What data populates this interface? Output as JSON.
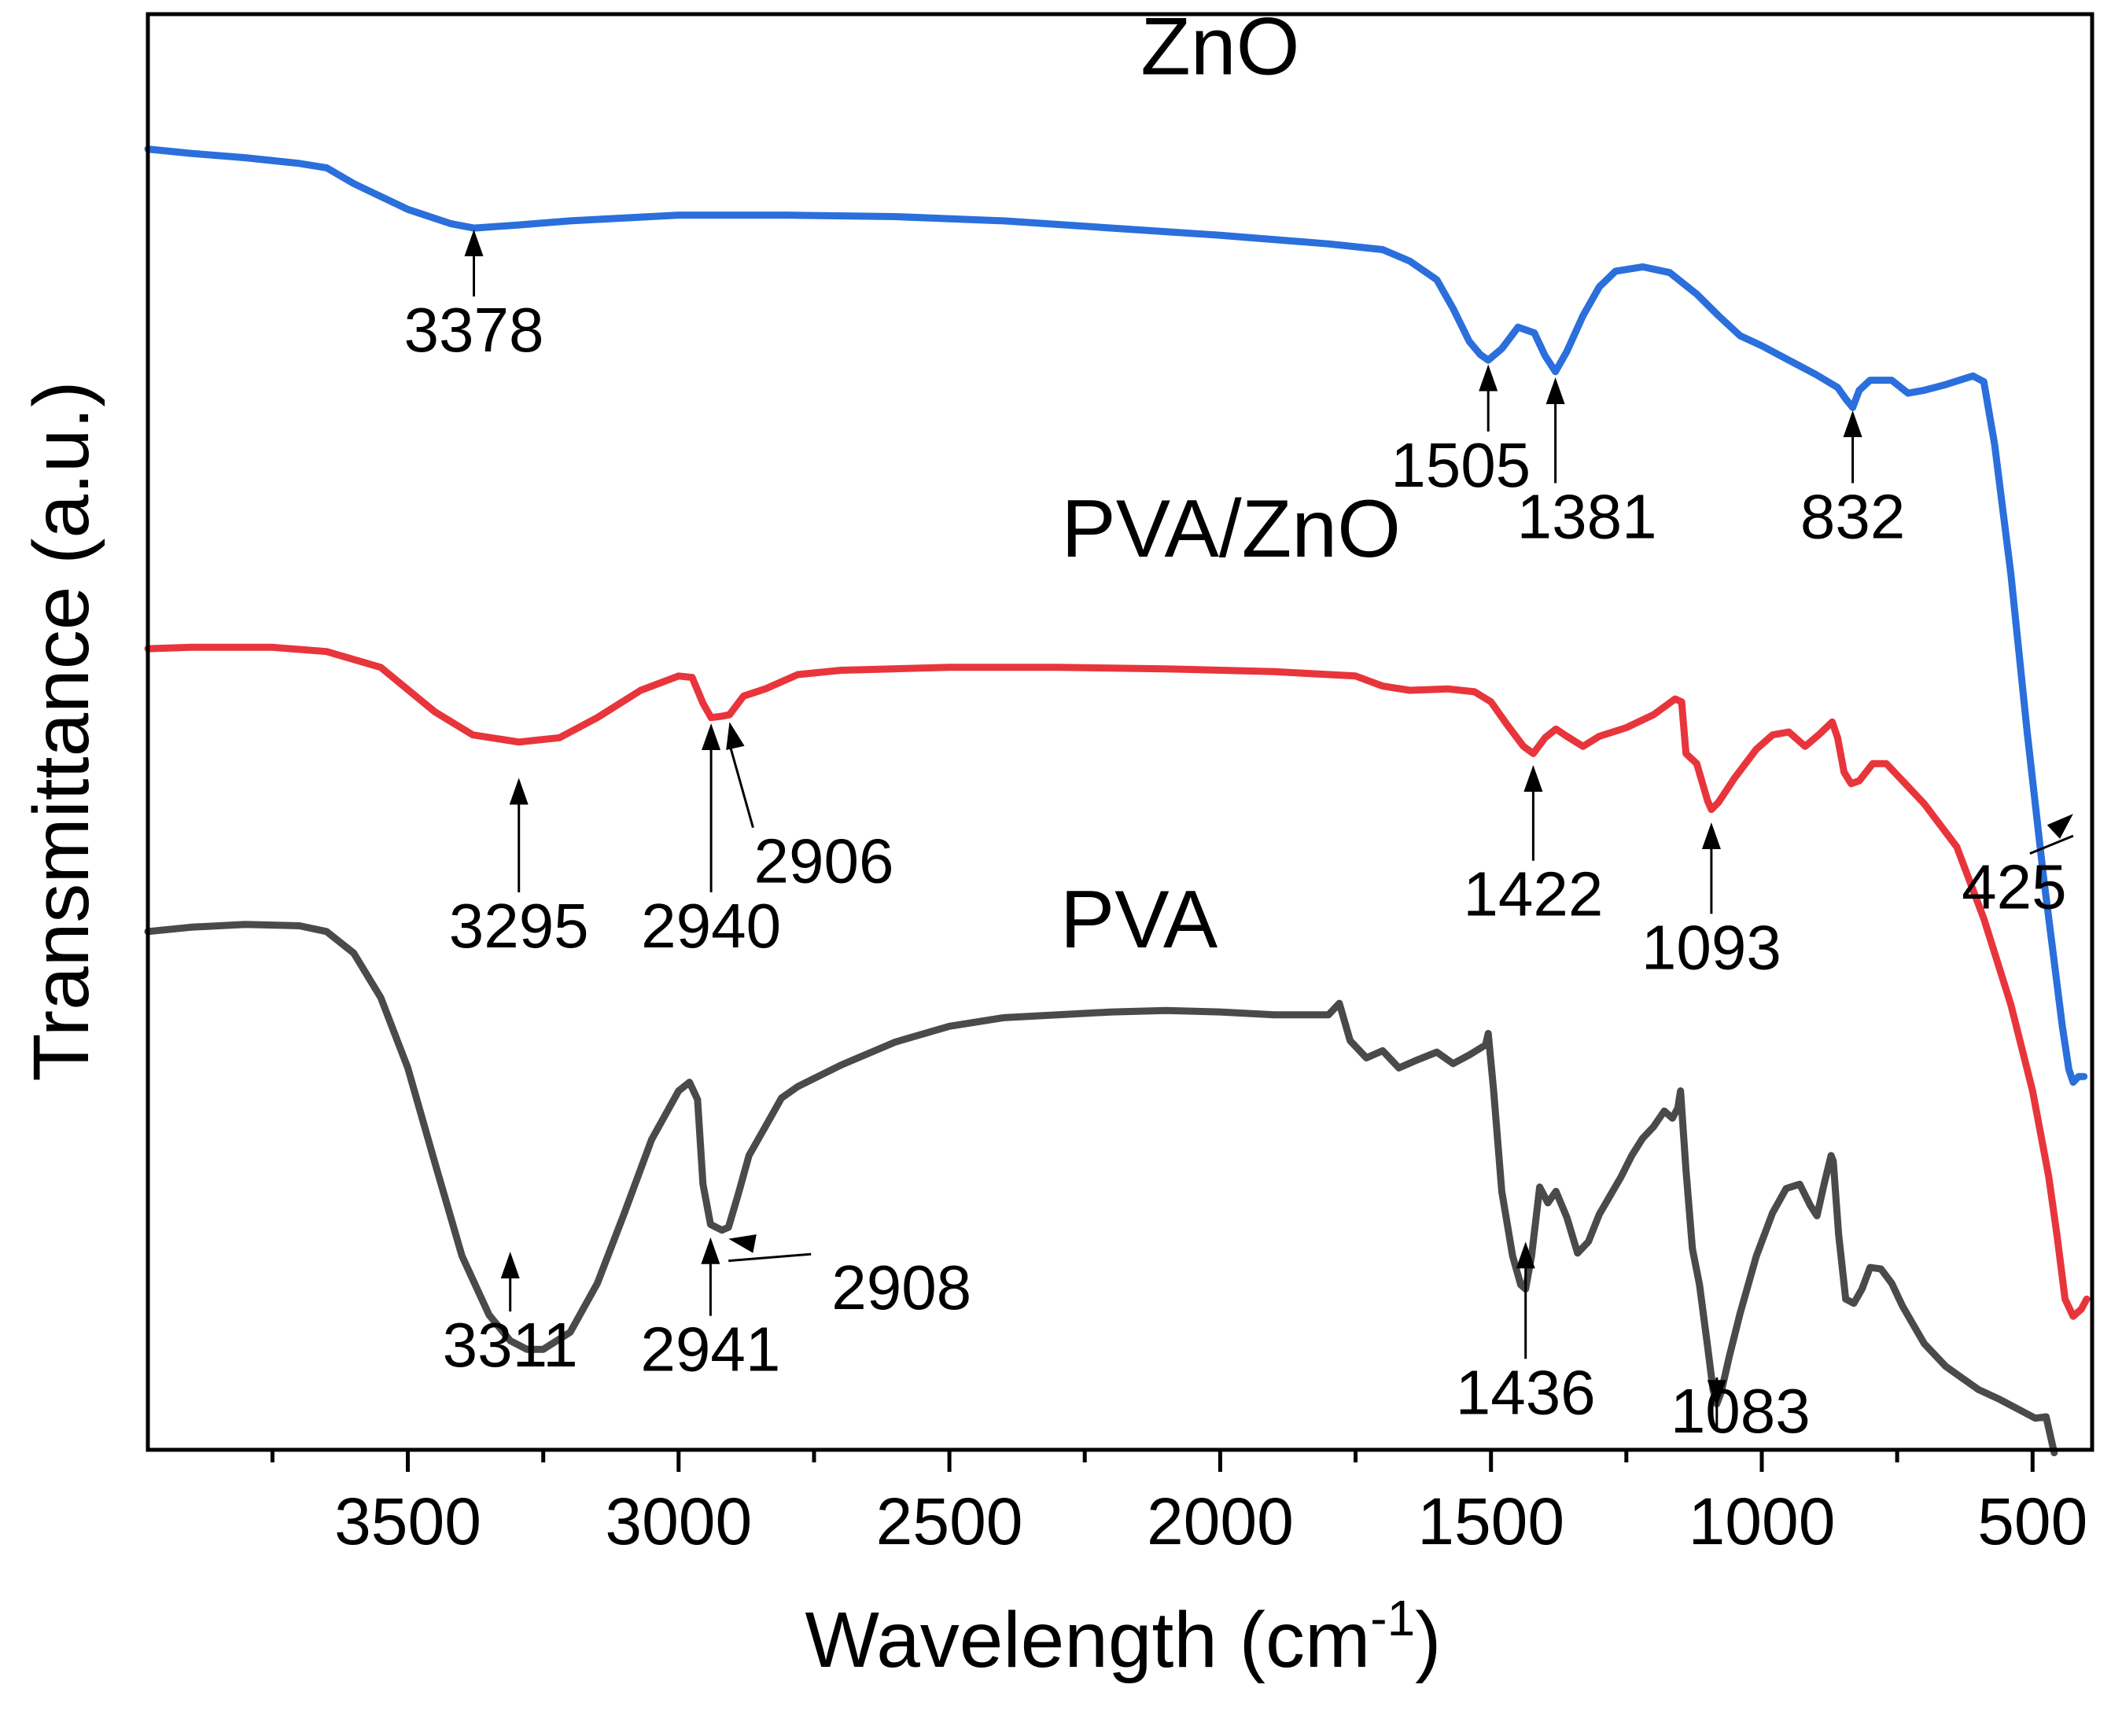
{
  "chart_data": {
    "type": "line",
    "title": "",
    "xlabel": "Wavelength (cm",
    "xlabel_superscript": "-1",
    "xlabel_suffix": ")",
    "ylabel": "Transmittance (a.u.)",
    "xlim": [
      3980,
      390
    ],
    "ylim": [
      0,
      100
    ],
    "x_ticks": [
      {
        "value": 3500,
        "label": "3500"
      },
      {
        "value": 3000,
        "label": "3000"
      },
      {
        "value": 2500,
        "label": "2500"
      },
      {
        "value": 2000,
        "label": "2000"
      },
      {
        "value": 1500,
        "label": "1500"
      },
      {
        "value": 1000,
        "label": "1000"
      },
      {
        "value": 500,
        "label": "500"
      }
    ],
    "minor_ticks": [
      3750,
      3250,
      2750,
      2250,
      1750,
      1250,
      750
    ],
    "series": [
      {
        "name": "ZnO",
        "color": "#2a6fdb",
        "label_at": [
          2000,
          95.8
        ],
        "points": [
          [
            3980,
            90.6
          ],
          [
            3900,
            90.3
          ],
          [
            3800,
            90.0
          ],
          [
            3700,
            89.6
          ],
          [
            3650,
            89.3
          ],
          [
            3600,
            88.2
          ],
          [
            3500,
            86.4
          ],
          [
            3420,
            85.4
          ],
          [
            3378,
            85.1
          ],
          [
            3300,
            85.3
          ],
          [
            3200,
            85.6
          ],
          [
            3000,
            86.0
          ],
          [
            2800,
            86.0
          ],
          [
            2600,
            85.9
          ],
          [
            2400,
            85.6
          ],
          [
            2200,
            85.1
          ],
          [
            2000,
            84.6
          ],
          [
            1800,
            84.0
          ],
          [
            1700,
            83.6
          ],
          [
            1650,
            82.8
          ],
          [
            1600,
            81.5
          ],
          [
            1570,
            79.5
          ],
          [
            1540,
            77.2
          ],
          [
            1520,
            76.3
          ],
          [
            1505,
            75.9
          ],
          [
            1480,
            76.7
          ],
          [
            1450,
            78.2
          ],
          [
            1420,
            77.8
          ],
          [
            1400,
            76.2
          ],
          [
            1381,
            75.1
          ],
          [
            1360,
            76.5
          ],
          [
            1330,
            79.0
          ],
          [
            1300,
            81.0
          ],
          [
            1270,
            82.1
          ],
          [
            1220,
            82.4
          ],
          [
            1170,
            82.0
          ],
          [
            1120,
            80.5
          ],
          [
            1080,
            79.0
          ],
          [
            1040,
            77.6
          ],
          [
            1000,
            76.9
          ],
          [
            950,
            75.9
          ],
          [
            900,
            74.9
          ],
          [
            860,
            74.0
          ],
          [
            845,
            73.2
          ],
          [
            832,
            72.6
          ],
          [
            820,
            73.8
          ],
          [
            800,
            74.5
          ],
          [
            760,
            74.5
          ],
          [
            730,
            73.6
          ],
          [
            700,
            73.8
          ],
          [
            660,
            74.2
          ],
          [
            610,
            74.8
          ],
          [
            590,
            74.4
          ],
          [
            570,
            70.0
          ],
          [
            540,
            61.0
          ],
          [
            510,
            50.0
          ],
          [
            480,
            40.0
          ],
          [
            460,
            34.0
          ],
          [
            445,
            29.5
          ],
          [
            433,
            26.5
          ],
          [
            425,
            25.6
          ],
          [
            415,
            26.0
          ],
          [
            405,
            26.0
          ]
        ]
      },
      {
        "name": "PVA/ZnO",
        "color": "#e8353c",
        "label_at": [
          1980,
          62.2
        ],
        "points": [
          [
            3980,
            55.8
          ],
          [
            3900,
            55.9
          ],
          [
            3750,
            55.9
          ],
          [
            3650,
            55.6
          ],
          [
            3550,
            54.5
          ],
          [
            3450,
            51.4
          ],
          [
            3380,
            49.8
          ],
          [
            3295,
            49.3
          ],
          [
            3220,
            49.6
          ],
          [
            3150,
            51.0
          ],
          [
            3070,
            52.9
          ],
          [
            3000,
            53.9
          ],
          [
            2975,
            53.8
          ],
          [
            2955,
            52.0
          ],
          [
            2940,
            51.0
          ],
          [
            2920,
            51.1
          ],
          [
            2906,
            51.2
          ],
          [
            2880,
            52.5
          ],
          [
            2840,
            53.0
          ],
          [
            2780,
            54.0
          ],
          [
            2700,
            54.3
          ],
          [
            2500,
            54.5
          ],
          [
            2300,
            54.5
          ],
          [
            2100,
            54.4
          ],
          [
            1900,
            54.2
          ],
          [
            1750,
            53.9
          ],
          [
            1700,
            53.2
          ],
          [
            1650,
            52.9
          ],
          [
            1580,
            53.0
          ],
          [
            1530,
            52.8
          ],
          [
            1500,
            52.1
          ],
          [
            1470,
            50.5
          ],
          [
            1440,
            49.0
          ],
          [
            1422,
            48.5
          ],
          [
            1400,
            49.6
          ],
          [
            1380,
            50.2
          ],
          [
            1360,
            49.7
          ],
          [
            1330,
            49.0
          ],
          [
            1300,
            49.7
          ],
          [
            1250,
            50.3
          ],
          [
            1200,
            51.2
          ],
          [
            1160,
            52.3
          ],
          [
            1148,
            52.1
          ],
          [
            1140,
            48.5
          ],
          [
            1120,
            47.8
          ],
          [
            1100,
            45.2
          ],
          [
            1093,
            44.6
          ],
          [
            1080,
            45.1
          ],
          [
            1050,
            46.8
          ],
          [
            1010,
            48.8
          ],
          [
            980,
            49.8
          ],
          [
            950,
            50.0
          ],
          [
            920,
            49.0
          ],
          [
            895,
            49.8
          ],
          [
            870,
            50.7
          ],
          [
            860,
            49.6
          ],
          [
            848,
            47.2
          ],
          [
            835,
            46.4
          ],
          [
            820,
            46.6
          ],
          [
            795,
            47.8
          ],
          [
            770,
            47.8
          ],
          [
            740,
            46.6
          ],
          [
            700,
            45.0
          ],
          [
            640,
            42.0
          ],
          [
            590,
            37.0
          ],
          [
            540,
            31.0
          ],
          [
            500,
            25.0
          ],
          [
            470,
            19.0
          ],
          [
            455,
            15.0
          ],
          [
            440,
            10.5
          ],
          [
            425,
            9.3
          ],
          [
            410,
            9.8
          ],
          [
            400,
            10.5
          ]
        ]
      },
      {
        "name": "PVA",
        "color": "#4a4a4a",
        "label_at": [
          2150,
          35.0
        ],
        "points": [
          [
            3980,
            36.1
          ],
          [
            3900,
            36.4
          ],
          [
            3800,
            36.6
          ],
          [
            3700,
            36.5
          ],
          [
            3650,
            36.1
          ],
          [
            3600,
            34.6
          ],
          [
            3550,
            31.5
          ],
          [
            3500,
            26.6
          ],
          [
            3450,
            20.0
          ],
          [
            3400,
            13.5
          ],
          [
            3350,
            9.4
          ],
          [
            3311,
            7.6
          ],
          [
            3280,
            7.0
          ],
          [
            3250,
            7.0
          ],
          [
            3200,
            8.2
          ],
          [
            3150,
            11.6
          ],
          [
            3100,
            16.5
          ],
          [
            3050,
            21.6
          ],
          [
            3000,
            25.0
          ],
          [
            2980,
            25.6
          ],
          [
            2965,
            24.4
          ],
          [
            2955,
            18.5
          ],
          [
            2941,
            15.7
          ],
          [
            2920,
            15.3
          ],
          [
            2908,
            15.5
          ],
          [
            2890,
            17.8
          ],
          [
            2870,
            20.5
          ],
          [
            2840,
            22.5
          ],
          [
            2810,
            24.5
          ],
          [
            2780,
            25.3
          ],
          [
            2700,
            26.8
          ],
          [
            2600,
            28.4
          ],
          [
            2500,
            29.5
          ],
          [
            2400,
            30.1
          ],
          [
            2300,
            30.3
          ],
          [
            2200,
            30.5
          ],
          [
            2100,
            30.6
          ],
          [
            2000,
            30.5
          ],
          [
            1900,
            30.3
          ],
          [
            1800,
            30.3
          ],
          [
            1780,
            31.1
          ],
          [
            1760,
            28.5
          ],
          [
            1730,
            27.3
          ],
          [
            1700,
            27.8
          ],
          [
            1670,
            26.6
          ],
          [
            1640,
            27.1
          ],
          [
            1600,
            27.7
          ],
          [
            1570,
            26.9
          ],
          [
            1540,
            27.5
          ],
          [
            1510,
            28.2
          ],
          [
            1505,
            29.0
          ],
          [
            1495,
            25.0
          ],
          [
            1480,
            18.0
          ],
          [
            1460,
            13.5
          ],
          [
            1445,
            11.5
          ],
          [
            1436,
            11.2
          ],
          [
            1425,
            13.5
          ],
          [
            1410,
            18.3
          ],
          [
            1395,
            17.2
          ],
          [
            1380,
            18.0
          ],
          [
            1360,
            16.2
          ],
          [
            1340,
            13.7
          ],
          [
            1320,
            14.5
          ],
          [
            1300,
            16.4
          ],
          [
            1260,
            19.0
          ],
          [
            1240,
            20.5
          ],
          [
            1220,
            21.7
          ],
          [
            1200,
            22.5
          ],
          [
            1180,
            23.6
          ],
          [
            1165,
            23.1
          ],
          [
            1155,
            23.8
          ],
          [
            1150,
            25.0
          ],
          [
            1140,
            19.5
          ],
          [
            1128,
            14.0
          ],
          [
            1115,
            11.5
          ],
          [
            1100,
            7.2
          ],
          [
            1090,
            4.2
          ],
          [
            1083,
            3.2
          ],
          [
            1075,
            4.0
          ],
          [
            1060,
            6.5
          ],
          [
            1040,
            9.5
          ],
          [
            1010,
            13.5
          ],
          [
            980,
            16.5
          ],
          [
            955,
            18.2
          ],
          [
            930,
            18.5
          ],
          [
            910,
            17.0
          ],
          [
            898,
            16.3
          ],
          [
            885,
            18.5
          ],
          [
            872,
            20.5
          ],
          [
            868,
            20.1
          ],
          [
            858,
            15.0
          ],
          [
            845,
            10.5
          ],
          [
            830,
            10.2
          ],
          [
            815,
            11.2
          ],
          [
            800,
            12.7
          ],
          [
            780,
            12.6
          ],
          [
            760,
            11.6
          ],
          [
            740,
            10.0
          ],
          [
            700,
            7.4
          ],
          [
            660,
            5.8
          ],
          [
            630,
            5.0
          ],
          [
            600,
            4.2
          ],
          [
            560,
            3.5
          ],
          [
            520,
            2.7
          ],
          [
            495,
            2.2
          ],
          [
            475,
            2.3
          ],
          [
            460,
            -0.2
          ]
        ]
      }
    ],
    "peak_annotations": [
      {
        "label": "3378",
        "x": 3378,
        "tip_y": 85.0,
        "text_y": 76.5
      },
      {
        "label": "1505",
        "x": 1505,
        "tip_y": 75.6,
        "text_y": 67.1
      },
      {
        "label": "1381",
        "x": 1381,
        "tip_y": 74.7,
        "text_y": 63.5
      },
      {
        "label": "832",
        "x": 832,
        "tip_y": 72.4,
        "text_y": 63.5
      },
      {
        "label": "3295",
        "x": 3295,
        "tip_y": 46.8,
        "text_y": 35.0
      },
      {
        "label": "2940",
        "x": 2940,
        "tip_y": 50.6,
        "text_y": 35.0
      },
      {
        "label": "2906",
        "x": 2906,
        "tip_y": 50.7,
        "text_y": 39.5
      },
      {
        "label": "1422",
        "x": 1422,
        "tip_y": 47.7,
        "text_y": 37.2
      },
      {
        "label": "1093",
        "x": 1093,
        "tip_y": 43.7,
        "text_y": 33.5
      },
      {
        "label": "425",
        "x": 425,
        "tip_y": 44.3,
        "text_y": 37.7
      },
      {
        "label": "3311",
        "x": 3311,
        "tip_y": 13.8,
        "text_y": 5.8
      },
      {
        "label": "2941",
        "x": 2941,
        "tip_y": 14.8,
        "text_y": 5.5
      },
      {
        "label": "2908",
        "x": 2908,
        "tip_y": 14.7,
        "text_y": 9.8
      },
      {
        "label": "1436",
        "x": 1436,
        "tip_y": 14.5,
        "text_y": 2.5
      },
      {
        "label": "1083",
        "x": 1083,
        "tip_y": 3.0,
        "text_y": 1.2
      }
    ]
  }
}
